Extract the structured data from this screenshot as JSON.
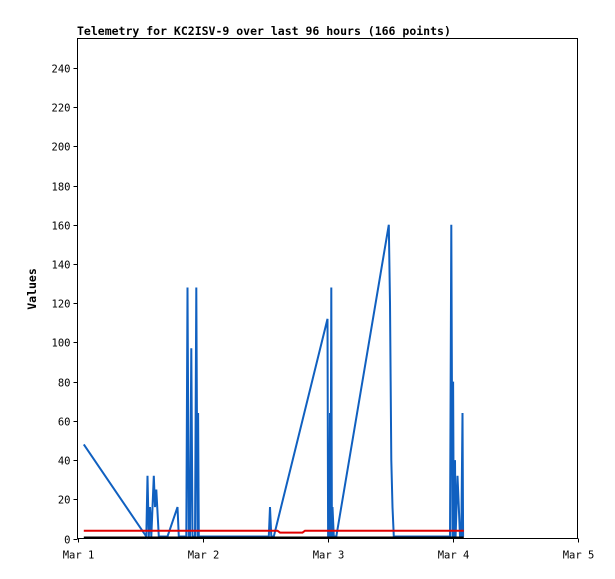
{
  "chart_data": {
    "type": "line",
    "title": "Telemetry for KC2ISV-9 over last 96 hours (166 points)",
    "xlabel": "",
    "ylabel": "Values",
    "x_tick_labels": [
      "Mar 1",
      "Mar 2",
      "Mar 3",
      "Mar 4",
      "Mar 5"
    ],
    "xlim": [
      0,
      4
    ],
    "ylim": [
      0,
      255
    ],
    "y_ticks": [
      0,
      20,
      40,
      60,
      80,
      100,
      120,
      140,
      160,
      180,
      200,
      220,
      240
    ],
    "grid": false,
    "legend": "none",
    "series": [
      {
        "color": "#1060c0",
        "points": [
          [
            0.05,
            48
          ],
          [
            0.55,
            1
          ],
          [
            0.56,
            32
          ],
          [
            0.57,
            1
          ],
          [
            0.58,
            16
          ],
          [
            0.59,
            1
          ],
          [
            0.61,
            32
          ],
          [
            0.62,
            16
          ],
          [
            0.63,
            25
          ],
          [
            0.65,
            1
          ],
          [
            0.67,
            1
          ],
          [
            0.72,
            1
          ],
          [
            0.8,
            16
          ],
          [
            0.81,
            1
          ],
          [
            0.87,
            1
          ],
          [
            0.88,
            128
          ],
          [
            0.89,
            1
          ],
          [
            0.9,
            1
          ],
          [
            0.91,
            97
          ],
          [
            0.92,
            1
          ],
          [
            0.94,
            1
          ],
          [
            0.95,
            128
          ],
          [
            0.96,
            1
          ],
          [
            0.965,
            64
          ],
          [
            0.97,
            1
          ],
          [
            1.53,
            1
          ],
          [
            1.54,
            16
          ],
          [
            1.55,
            1
          ],
          [
            1.57,
            1
          ],
          [
            2.0,
            112
          ],
          [
            2.005,
            1
          ],
          [
            2.01,
            48
          ],
          [
            2.015,
            1
          ],
          [
            2.02,
            64
          ],
          [
            2.025,
            1
          ],
          [
            2.03,
            128
          ],
          [
            2.035,
            1
          ],
          [
            2.04,
            16
          ],
          [
            2.05,
            1
          ],
          [
            2.07,
            1
          ],
          [
            2.49,
            160
          ],
          [
            2.5,
            120
          ],
          [
            2.51,
            40
          ],
          [
            2.52,
            16
          ],
          [
            2.53,
            1
          ],
          [
            2.98,
            1
          ],
          [
            2.99,
            160
          ],
          [
            3.0,
            1
          ],
          [
            3.005,
            80
          ],
          [
            3.01,
            1
          ],
          [
            3.02,
            40
          ],
          [
            3.025,
            1
          ],
          [
            3.04,
            32
          ],
          [
            3.05,
            16
          ],
          [
            3.06,
            1
          ],
          [
            3.07,
            1
          ],
          [
            3.08,
            64
          ],
          [
            3.085,
            1
          ]
        ]
      },
      {
        "color": "#e00000",
        "points": [
          [
            0.05,
            4
          ],
          [
            0.55,
            4
          ],
          [
            0.6,
            4
          ],
          [
            0.7,
            4
          ],
          [
            0.8,
            4
          ],
          [
            0.9,
            4
          ],
          [
            1.0,
            4
          ],
          [
            1.2,
            4
          ],
          [
            1.5,
            4
          ],
          [
            1.6,
            4
          ],
          [
            1.62,
            3
          ],
          [
            1.8,
            3
          ],
          [
            1.82,
            4
          ],
          [
            2.0,
            4
          ],
          [
            2.5,
            4
          ],
          [
            3.0,
            4
          ],
          [
            3.09,
            4
          ]
        ]
      },
      {
        "color": "#000000",
        "points": [
          [
            0.05,
            0.5
          ],
          [
            3.09,
            0.5
          ]
        ]
      }
    ]
  }
}
